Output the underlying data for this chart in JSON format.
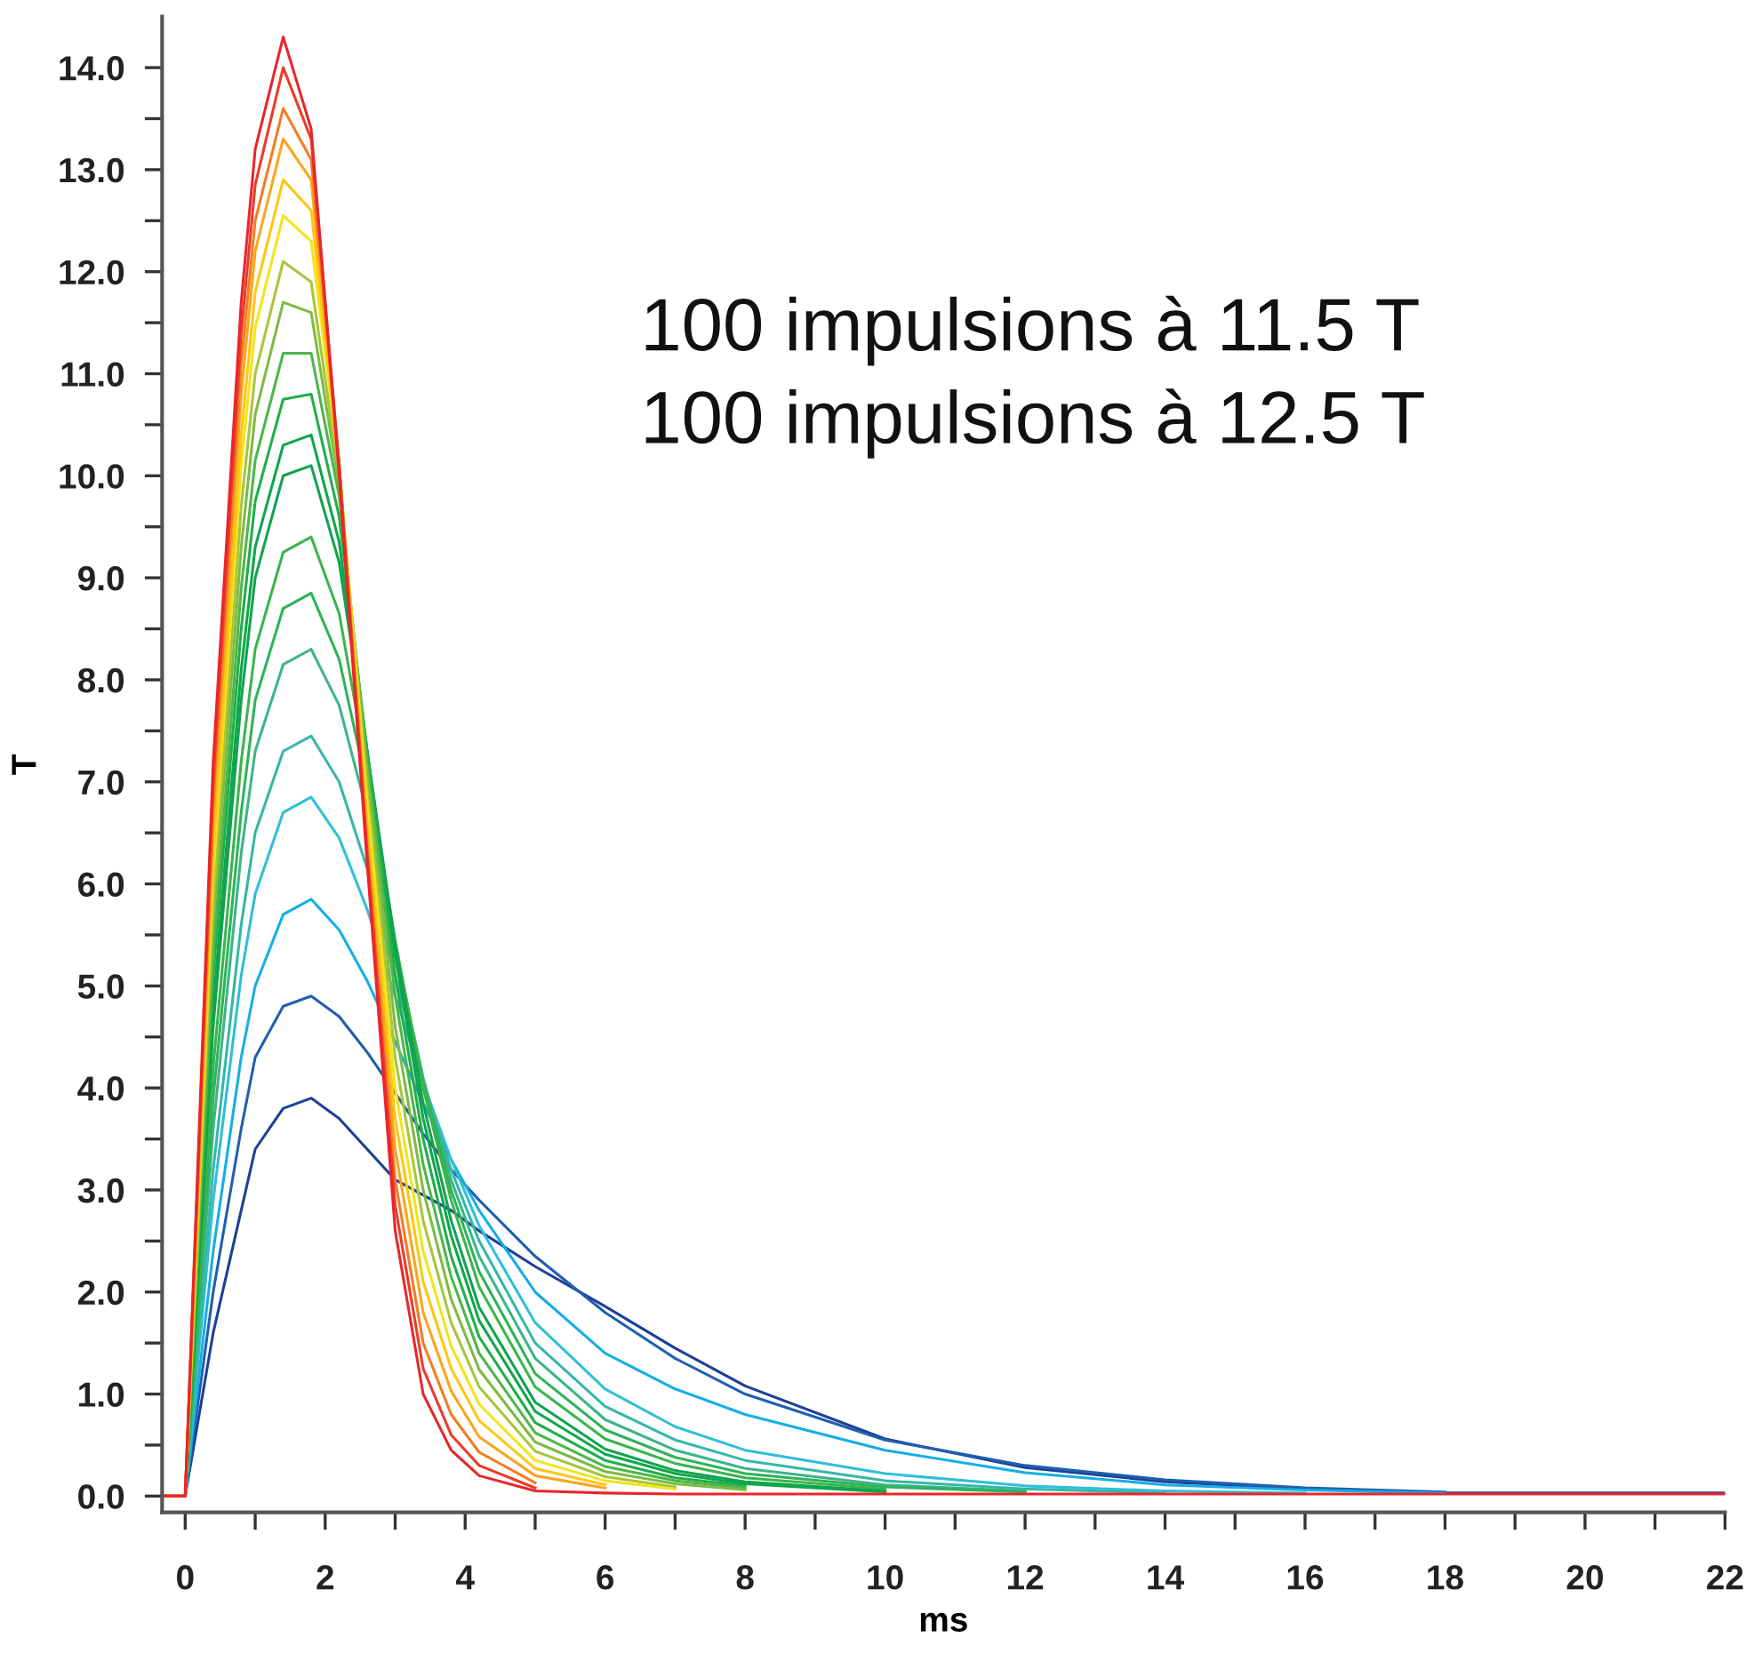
{
  "chart_data": {
    "type": "line",
    "xlabel": "ms",
    "ylabel": "T",
    "annotations": [
      "100 impulsions à 11.5 T",
      "100 impulsions à 12.5 T"
    ],
    "x": [
      -0.3,
      0,
      0.4,
      0.8,
      1.0,
      1.4,
      1.8,
      2.2,
      2.6,
      3.0,
      3.4,
      3.8,
      4.2,
      5,
      6,
      7,
      8,
      10,
      12,
      14,
      16,
      18,
      22
    ],
    "xlim": [
      -0.33,
      22
    ],
    "ylim": [
      -0.16,
      14.5
    ],
    "xticks": [
      0,
      {
        "value": 1,
        "label": null
      },
      2,
      {
        "value": 3,
        "label": null
      },
      4,
      {
        "value": 5,
        "label": null
      },
      6,
      {
        "value": 7,
        "label": null
      },
      8,
      {
        "value": 9,
        "label": null
      },
      10,
      {
        "value": 11,
        "label": null
      },
      12,
      {
        "value": 13,
        "label": null
      },
      14,
      {
        "value": 15,
        "label": null
      },
      16,
      {
        "value": 17,
        "label": null
      },
      18,
      {
        "value": 19,
        "label": null
      },
      20,
      {
        "value": 21,
        "label": null
      },
      22
    ],
    "yticks": [
      {
        "value": 0,
        "label": "0.0"
      },
      {
        "value": 0.5,
        "label": null
      },
      {
        "value": 1,
        "label": "1.0"
      },
      {
        "value": 1.5,
        "label": null
      },
      {
        "value": 2,
        "label": "2.0"
      },
      {
        "value": 2.5,
        "label": null
      },
      {
        "value": 3,
        "label": "3.0"
      },
      {
        "value": 3.5,
        "label": null
      },
      {
        "value": 4,
        "label": "4.0"
      },
      {
        "value": 4.5,
        "label": null
      },
      {
        "value": 5,
        "label": "5.0"
      },
      {
        "value": 5.5,
        "label": null
      },
      {
        "value": 6,
        "label": "6.0"
      },
      {
        "value": 6.5,
        "label": null
      },
      {
        "value": 7,
        "label": "7.0"
      },
      {
        "value": 7.5,
        "label": null
      },
      {
        "value": 8,
        "label": "8.0"
      },
      {
        "value": 8.5,
        "label": null
      },
      {
        "value": 9,
        "label": "9.0"
      },
      {
        "value": 9.5,
        "label": null
      },
      {
        "value": 10,
        "label": "10.0"
      },
      {
        "value": 10.5,
        "label": null
      },
      {
        "value": 11,
        "label": "11.0"
      },
      {
        "value": 11.5,
        "label": null
      },
      {
        "value": 12,
        "label": "12.0"
      },
      {
        "value": 12.5,
        "label": null
      },
      {
        "value": 13,
        "label": "13.0"
      },
      {
        "value": 13.5,
        "label": null
      },
      {
        "value": 14,
        "label": "14.0"
      }
    ],
    "marker": "none",
    "line_style": "solid",
    "series": [
      {
        "color": "#1e3f95",
        "values": [
          0,
          0,
          1.6,
          2.8,
          3.4,
          3.8,
          3.9,
          3.7,
          3.4,
          3.1,
          2.95,
          2.8,
          2.6,
          2.25,
          1.86,
          1.45,
          1.08,
          0.56,
          0.28,
          0.14,
          0.07,
          0.03,
          0.03
        ]
      },
      {
        "color": "#1f5fae",
        "values": [
          0,
          0,
          2.0,
          3.6,
          4.3,
          4.8,
          4.9,
          4.7,
          4.35,
          3.95,
          3.55,
          3.2,
          2.9,
          2.35,
          1.8,
          1.35,
          1.0,
          0.55,
          0.3,
          0.16,
          0.08,
          0.04,
          null
        ]
      },
      {
        "color": "#15aee6",
        "values": [
          0,
          0,
          2.4,
          4.3,
          5.0,
          5.7,
          5.85,
          5.55,
          5.05,
          4.45,
          3.85,
          3.3,
          2.8,
          2.0,
          1.4,
          1.05,
          0.8,
          0.45,
          0.23,
          0.11,
          0.06,
          0.03,
          null
        ]
      },
      {
        "color": "#2fbfd6",
        "values": [
          0,
          0,
          2.9,
          5.1,
          5.9,
          6.7,
          6.85,
          6.45,
          5.75,
          4.9,
          4.05,
          3.3,
          2.65,
          1.7,
          1.05,
          0.68,
          0.45,
          0.22,
          0.1,
          0.05,
          0.03,
          null,
          null
        ]
      },
      {
        "color": "#35b7a8",
        "values": [
          0,
          0,
          3.2,
          5.6,
          6.5,
          7.3,
          7.45,
          7.0,
          6.15,
          5.1,
          4.05,
          3.2,
          2.5,
          1.5,
          0.88,
          0.55,
          0.35,
          0.15,
          0.07,
          0.03,
          null,
          null,
          null
        ]
      },
      {
        "color": "#3bb58a",
        "values": [
          0,
          0,
          3.6,
          6.3,
          7.3,
          8.15,
          8.3,
          7.75,
          6.7,
          5.35,
          4.1,
          3.1,
          2.35,
          1.35,
          0.75,
          0.45,
          0.27,
          0.11,
          0.05,
          null,
          null,
          null,
          null
        ]
      },
      {
        "color": "#2db35a",
        "values": [
          0,
          0,
          3.9,
          6.7,
          7.8,
          8.7,
          8.85,
          8.2,
          6.95,
          5.4,
          4.05,
          3.0,
          2.2,
          1.2,
          0.65,
          0.38,
          0.22,
          0.09,
          0.04,
          null,
          null,
          null,
          null
        ]
      },
      {
        "color": "#3ab54a",
        "values": [
          0,
          0,
          4.2,
          7.2,
          8.3,
          9.25,
          9.4,
          8.65,
          7.1,
          5.45,
          4.0,
          2.9,
          2.05,
          1.07,
          0.56,
          0.32,
          0.18,
          0.07,
          null,
          null,
          null,
          null,
          null
        ]
      },
      {
        "color": "#10a34f",
        "values": [
          0,
          0,
          4.6,
          7.8,
          9.0,
          10.0,
          10.1,
          9.15,
          7.3,
          5.4,
          3.85,
          2.7,
          1.85,
          0.92,
          0.46,
          0.25,
          0.14,
          0.05,
          null,
          null,
          null,
          null,
          null
        ]
      },
      {
        "color": "#0ea64b",
        "values": [
          0,
          0,
          4.8,
          8.1,
          9.3,
          10.3,
          10.4,
          9.35,
          7.3,
          5.3,
          3.7,
          2.55,
          1.72,
          0.83,
          0.41,
          0.22,
          0.12,
          0.04,
          null,
          null,
          null,
          null,
          null
        ]
      },
      {
        "color": "#1fae4b",
        "values": [
          0,
          0,
          5.1,
          8.5,
          9.75,
          10.75,
          10.8,
          9.6,
          7.3,
          5.1,
          3.5,
          2.35,
          1.56,
          0.72,
          0.35,
          0.18,
          0.1,
          null,
          null,
          null,
          null,
          null,
          null
        ]
      },
      {
        "color": "#4cb748",
        "values": [
          0,
          0,
          5.3,
          8.9,
          10.15,
          11.2,
          11.2,
          9.8,
          7.2,
          4.9,
          3.25,
          2.15,
          1.4,
          0.62,
          0.29,
          0.15,
          0.08,
          null,
          null,
          null,
          null,
          null,
          null
        ]
      },
      {
        "color": "#7dbb42",
        "values": [
          0,
          0,
          5.6,
          9.3,
          10.6,
          11.7,
          11.6,
          9.9,
          7.1,
          4.6,
          3.0,
          1.93,
          1.24,
          0.53,
          0.24,
          0.12,
          0.06,
          null,
          null,
          null,
          null,
          null,
          null
        ]
      },
      {
        "color": "#a6c63b",
        "values": [
          0,
          0,
          5.8,
          9.7,
          11.0,
          12.1,
          11.9,
          10.0,
          6.95,
          4.3,
          2.7,
          1.7,
          1.07,
          0.44,
          0.19,
          0.09,
          null,
          null,
          null,
          null,
          null,
          null,
          null
        ]
      },
      {
        "color": "#f2e41a",
        "values": [
          0,
          0,
          6.1,
          10.1,
          11.45,
          12.55,
          12.3,
          10.1,
          6.8,
          4.0,
          2.4,
          1.47,
          0.9,
          0.35,
          0.15,
          0.07,
          null,
          null,
          null,
          null,
          null,
          null,
          null
        ]
      },
      {
        "color": "#fdc70f",
        "values": [
          0,
          0,
          6.3,
          10.4,
          11.8,
          12.9,
          12.6,
          10.1,
          6.6,
          3.7,
          2.1,
          1.25,
          0.74,
          0.27,
          0.11,
          null,
          null,
          null,
          null,
          null,
          null,
          null,
          null
        ]
      },
      {
        "color": "#f9a51b",
        "values": [
          0,
          0,
          6.6,
          10.8,
          12.2,
          13.3,
          12.9,
          10.1,
          6.45,
          3.4,
          1.8,
          1.03,
          0.58,
          0.2,
          0.08,
          null,
          null,
          null,
          null,
          null,
          null,
          null,
          null
        ]
      },
      {
        "color": "#f47c20",
        "values": [
          0,
          0,
          6.8,
          11.1,
          12.5,
          13.6,
          13.1,
          10.1,
          6.35,
          3.1,
          1.5,
          0.8,
          0.43,
          0.13,
          null,
          null,
          null,
          null,
          null,
          null,
          null,
          null,
          null
        ]
      },
      {
        "color": "#ee3a2a",
        "values": [
          0,
          0,
          7.0,
          11.4,
          12.85,
          14.0,
          13.3,
          10.1,
          6.3,
          2.85,
          1.25,
          0.6,
          0.3,
          0.08,
          null,
          null,
          null,
          null,
          null,
          null,
          null,
          null,
          null
        ]
      },
      {
        "color": "#e8262a",
        "values": [
          0,
          0,
          7.2,
          11.7,
          13.2,
          14.3,
          13.4,
          10.0,
          6.2,
          2.6,
          1.0,
          0.45,
          0.2,
          0.05,
          0.03,
          0.02,
          0.02,
          0.02,
          0.02,
          0.02,
          0.02,
          0.02,
          0.02
        ]
      }
    ]
  }
}
